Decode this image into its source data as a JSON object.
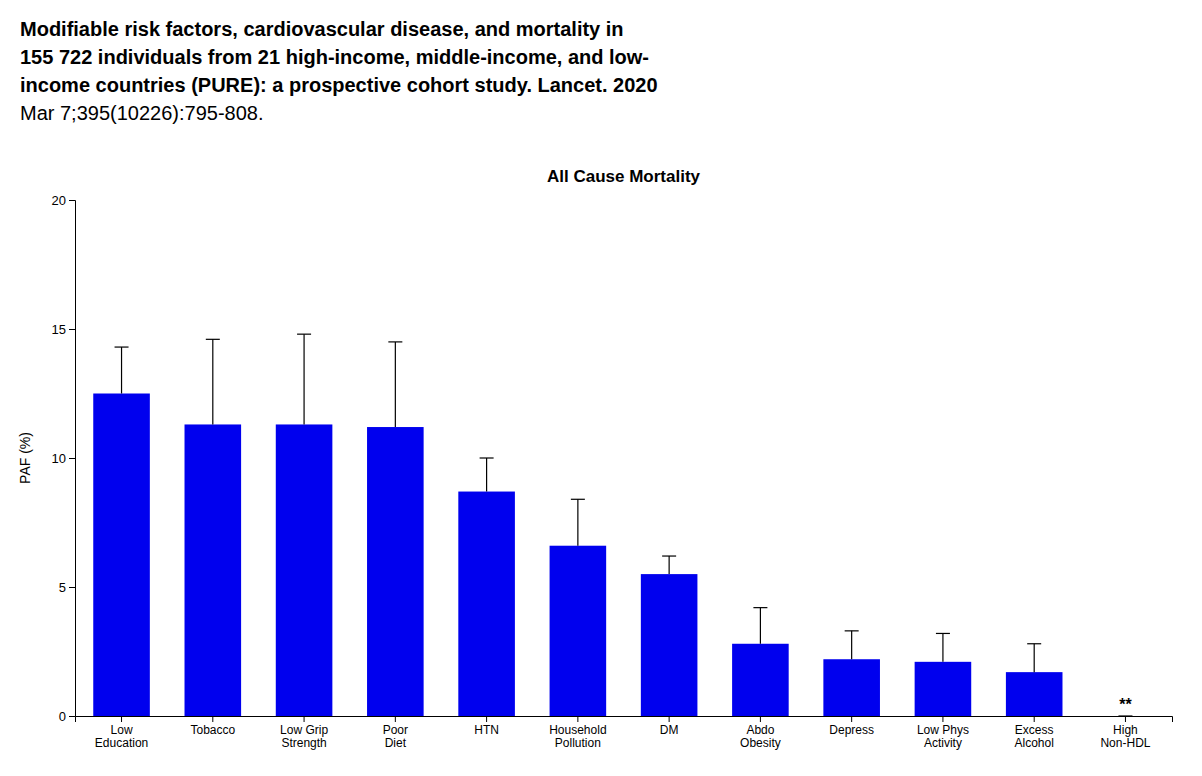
{
  "chart_data": {
    "type": "bar",
    "title": "All Cause Mortality",
    "subtitle": [
      "Modifiable risk factors, cardiovascular disease, and mortality in",
      "155 722 individuals from 21 high-income, middle-income, and low-",
      "income countries (PURE): a prospective cohort study. Lancet. 2020",
      "Mar 7;395(10226):795-808."
    ],
    "ylabel": "PAF (%)",
    "categories": [
      "Low\nEducation",
      "Tobacco",
      "Low Grip\nStrength",
      "Poor\nDiet",
      "HTN",
      "Household\nPollution",
      "DM",
      "Abdo\nObesity",
      "Depress",
      "Low Phys\nActivity",
      "Excess\nAlcohol",
      "High\nNon-HDL"
    ],
    "values": [
      12.5,
      11.3,
      11.3,
      11.2,
      8.7,
      6.6,
      5.5,
      2.8,
      2.2,
      2.1,
      1.7,
      0.0
    ],
    "errors_high": [
      14.3,
      14.6,
      14.8,
      14.5,
      10.0,
      8.4,
      6.2,
      4.2,
      3.3,
      3.2,
      2.8,
      0.0
    ],
    "color": "#0000EE",
    "ylim": [
      0,
      20
    ],
    "yticks": [
      0,
      5,
      10,
      15,
      20
    ],
    "grid": false,
    "annotations": [
      {
        "text": "**",
        "x": "High\nNon-HDL",
        "y": 0.25
      }
    ]
  }
}
